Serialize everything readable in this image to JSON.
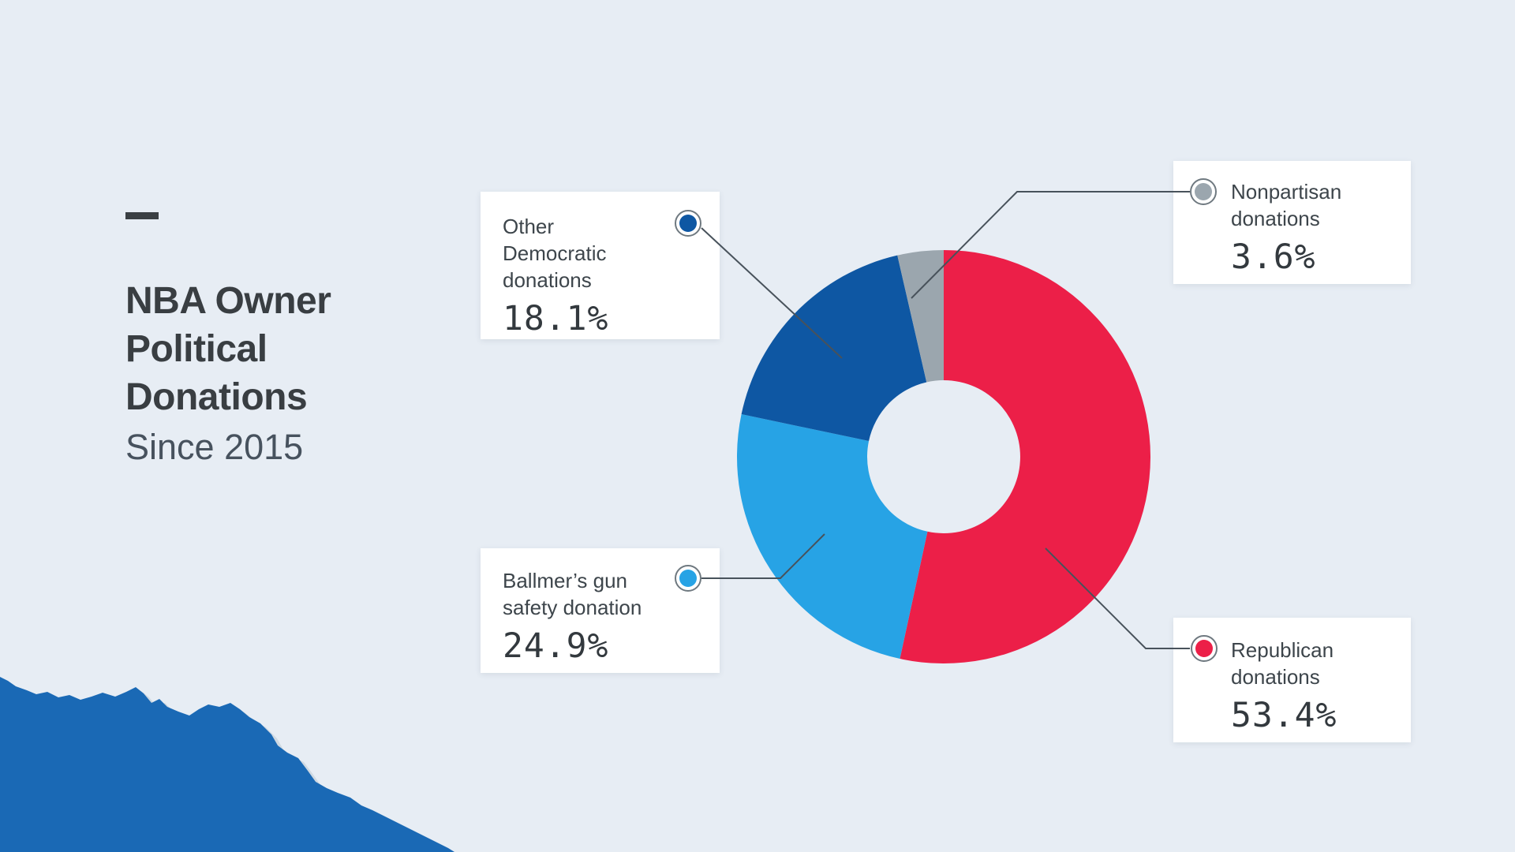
{
  "page": {
    "background_color": "#e7edf4",
    "leader_line_color": "#48525b",
    "marker_ring_color": "#6f7980",
    "torn_paper_color": "#1a69b5",
    "torn_paper_fringe_color": "#cfd9e2"
  },
  "title": {
    "heading_lines": [
      "NBA Owner",
      "Political",
      "Donations"
    ],
    "heading": "NBA Owner Political Donations",
    "subtitle": "Since 2015"
  },
  "chart_data": {
    "type": "pie",
    "subtype": "donut",
    "title": "NBA Owner Political Donations",
    "subtitle": "Since 2015",
    "unit": "%",
    "start_angle_deg": 0,
    "direction": "clockwise",
    "inner_radius_ratio": 0.37,
    "legend_position": "callout-labels",
    "slices": [
      {
        "label": "Republican donations",
        "value": 53.4,
        "display_value": "53.4%",
        "color": "#ec1f48"
      },
      {
        "label": "Ballmer’s gun safety donation",
        "value": 24.9,
        "display_value": "24.9%",
        "color": "#27a3e5"
      },
      {
        "label": "Other Democratic donations",
        "value": 18.1,
        "display_value": "18.1%",
        "color": "#0e57a3"
      },
      {
        "label": "Nonpartisan donations",
        "value": 3.6,
        "display_value": "3.6%",
        "color": "#9ba6ae"
      }
    ]
  }
}
